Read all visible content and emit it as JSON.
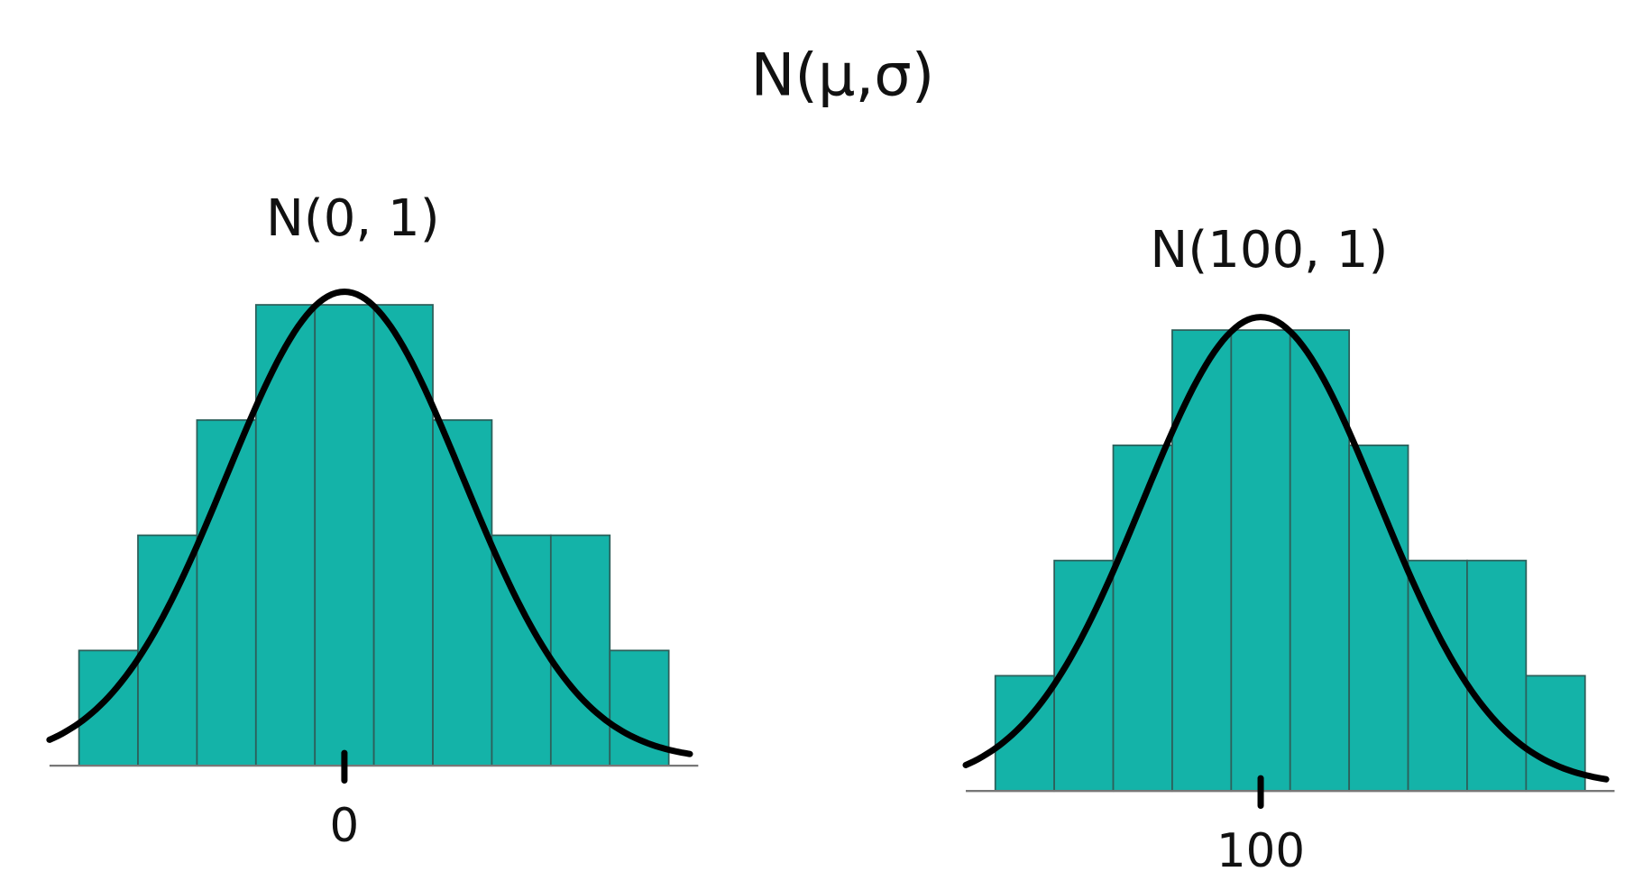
{
  "title": "N(μ,σ)",
  "chart_data": [
    {
      "type": "histogram",
      "title": "N(0, 1)",
      "bins": [
        -4.5,
        -3.5,
        -2.5,
        -1.5,
        -0.5,
        0.5,
        1.5,
        2.5,
        3.5,
        4.5,
        5.5
      ],
      "values": [
        1,
        2,
        3,
        4,
        4,
        4,
        3,
        2,
        2,
        1
      ],
      "xlim": [
        -5,
        6
      ],
      "xticks": [
        0
      ],
      "ylim": [
        0,
        5
      ],
      "color": "#14b3a8"
    },
    {
      "type": "histogram",
      "title": "N(100, 1)",
      "bins": [
        95.5,
        96.5,
        97.5,
        98.5,
        99.5,
        100.5,
        101.5,
        102.5,
        103.5,
        104.5,
        105.5
      ],
      "values": [
        1,
        2,
        3,
        4,
        4,
        4,
        3,
        2,
        2,
        1
      ],
      "xlim": [
        95,
        106
      ],
      "xticks": [
        100
      ],
      "ylim": [
        0,
        5
      ],
      "color": "#14b3a8"
    }
  ]
}
